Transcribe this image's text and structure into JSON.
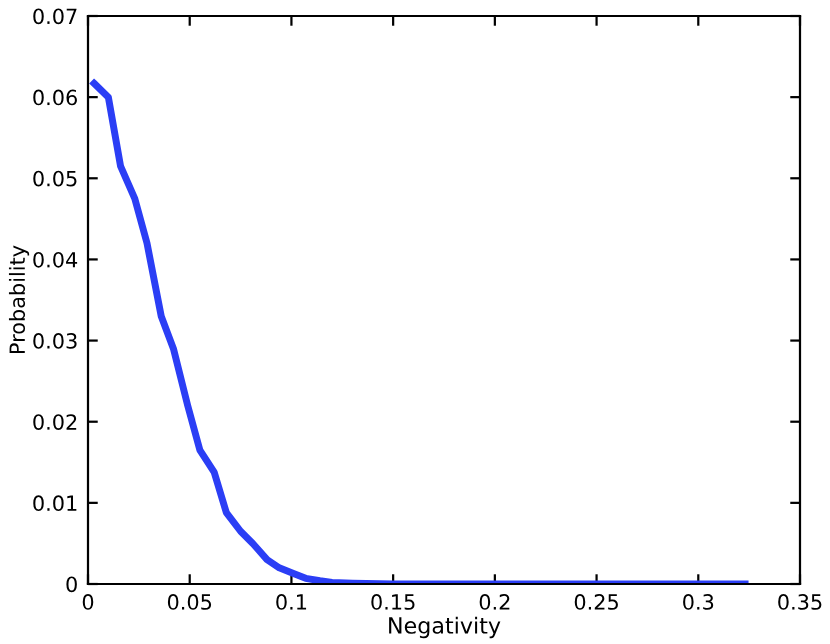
{
  "chart_data": {
    "type": "line",
    "xlabel": "Negativity",
    "ylabel": "Probability",
    "x": [
      0.003,
      0.01,
      0.016,
      0.023,
      0.029,
      0.036,
      0.042,
      0.049,
      0.055,
      0.062,
      0.068,
      0.075,
      0.081,
      0.088,
      0.094,
      0.101,
      0.107,
      0.114,
      0.12,
      0.13,
      0.15,
      0.2,
      0.25,
      0.3,
      0.323
    ],
    "series": [
      {
        "color": "#2b3ef5",
        "values": [
          0.0617,
          0.06,
          0.0515,
          0.0475,
          0.042,
          0.033,
          0.029,
          0.022,
          0.0165,
          0.0138,
          0.0088,
          0.0065,
          0.005,
          0.003,
          0.002,
          0.0013,
          0.0007,
          0.0004,
          0.0002,
          0.0001,
          0,
          0,
          0,
          0,
          0
        ]
      }
    ],
    "xlim": [
      0,
      0.35
    ],
    "ylim": [
      0,
      0.07
    ],
    "xticks": [
      0,
      0.05,
      0.1,
      0.15,
      0.2,
      0.25,
      0.3,
      0.35
    ],
    "yticks": [
      0,
      0.01,
      0.02,
      0.03,
      0.04,
      0.05,
      0.06,
      0.07
    ],
    "grid": false,
    "legend": false
  }
}
